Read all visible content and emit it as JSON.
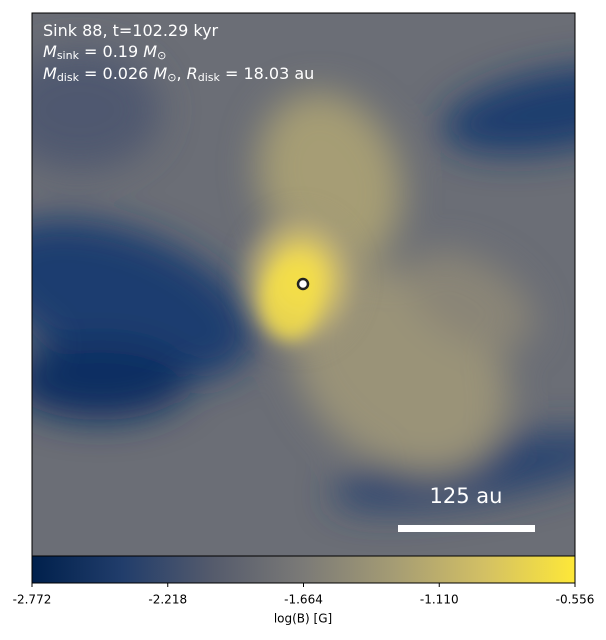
{
  "chart_data": {
    "type": "image",
    "annotations": [
      [
        "Sink 88, t=102.29 kyr"
      ],
      [
        "M",
        "sink",
        " = 0.19 ",
        "M",
        "⊙"
      ],
      [
        "M",
        "disk",
        " = 0.026 ",
        "M",
        "⊙",
        ", ",
        "R",
        "disk",
        " = 18.03 au"
      ]
    ],
    "scale_bar": "125 au",
    "colorbar_label": "log(B) [G]",
    "clim": [
      -2.772,
      -0.556
    ],
    "cticks": [
      -2.772,
      -2.218,
      -1.664,
      {
        "value": -1.11,
        "label": "-1.110"
      },
      -0.556
    ],
    "colormap": [
      "#00204c",
      "#213d6b",
      "#555b6c",
      "#7b7a77",
      "#a59c74",
      "#d3c064",
      "#fee838"
    ]
  }
}
